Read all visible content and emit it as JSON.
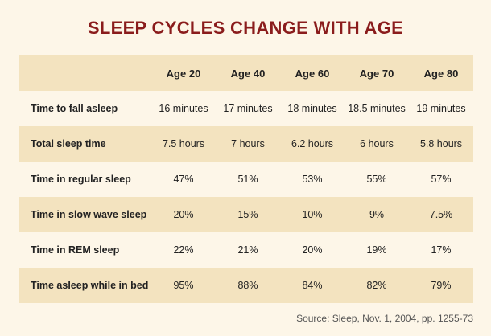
{
  "title": "SLEEP CYCLES CHANGE WITH AGE",
  "source": "Source: Sleep, Nov. 1, 2004, pp. 1255-73",
  "colors": {
    "title": "#8a1c1c",
    "row_band": "#f3e3bf",
    "background": "#fdf6e8"
  },
  "chart_data": {
    "type": "table",
    "title": "SLEEP CYCLES CHANGE WITH AGE",
    "columns": [
      "Age 20",
      "Age 40",
      "Age 60",
      "Age 70",
      "Age 80"
    ],
    "rows": [
      {
        "label": "Time to fall asleep",
        "cells": [
          "16 minutes",
          "17 minutes",
          "18 minutes",
          "18.5 minutes",
          "19 minutes"
        ]
      },
      {
        "label": "Total sleep time",
        "cells": [
          "7.5 hours",
          "7 hours",
          "6.2 hours",
          "6 hours",
          "5.8 hours"
        ]
      },
      {
        "label": "Time in regular sleep",
        "cells": [
          "47%",
          "51%",
          "53%",
          "55%",
          "57%"
        ]
      },
      {
        "label": "Time in slow wave sleep",
        "cells": [
          "20%",
          "15%",
          "10%",
          "9%",
          "7.5%"
        ]
      },
      {
        "label": "Time in REM sleep",
        "cells": [
          "22%",
          "21%",
          "20%",
          "19%",
          "17%"
        ]
      },
      {
        "label": "Time asleep while in bed",
        "cells": [
          "95%",
          "88%",
          "84%",
          "82%",
          "79%"
        ]
      }
    ]
  }
}
